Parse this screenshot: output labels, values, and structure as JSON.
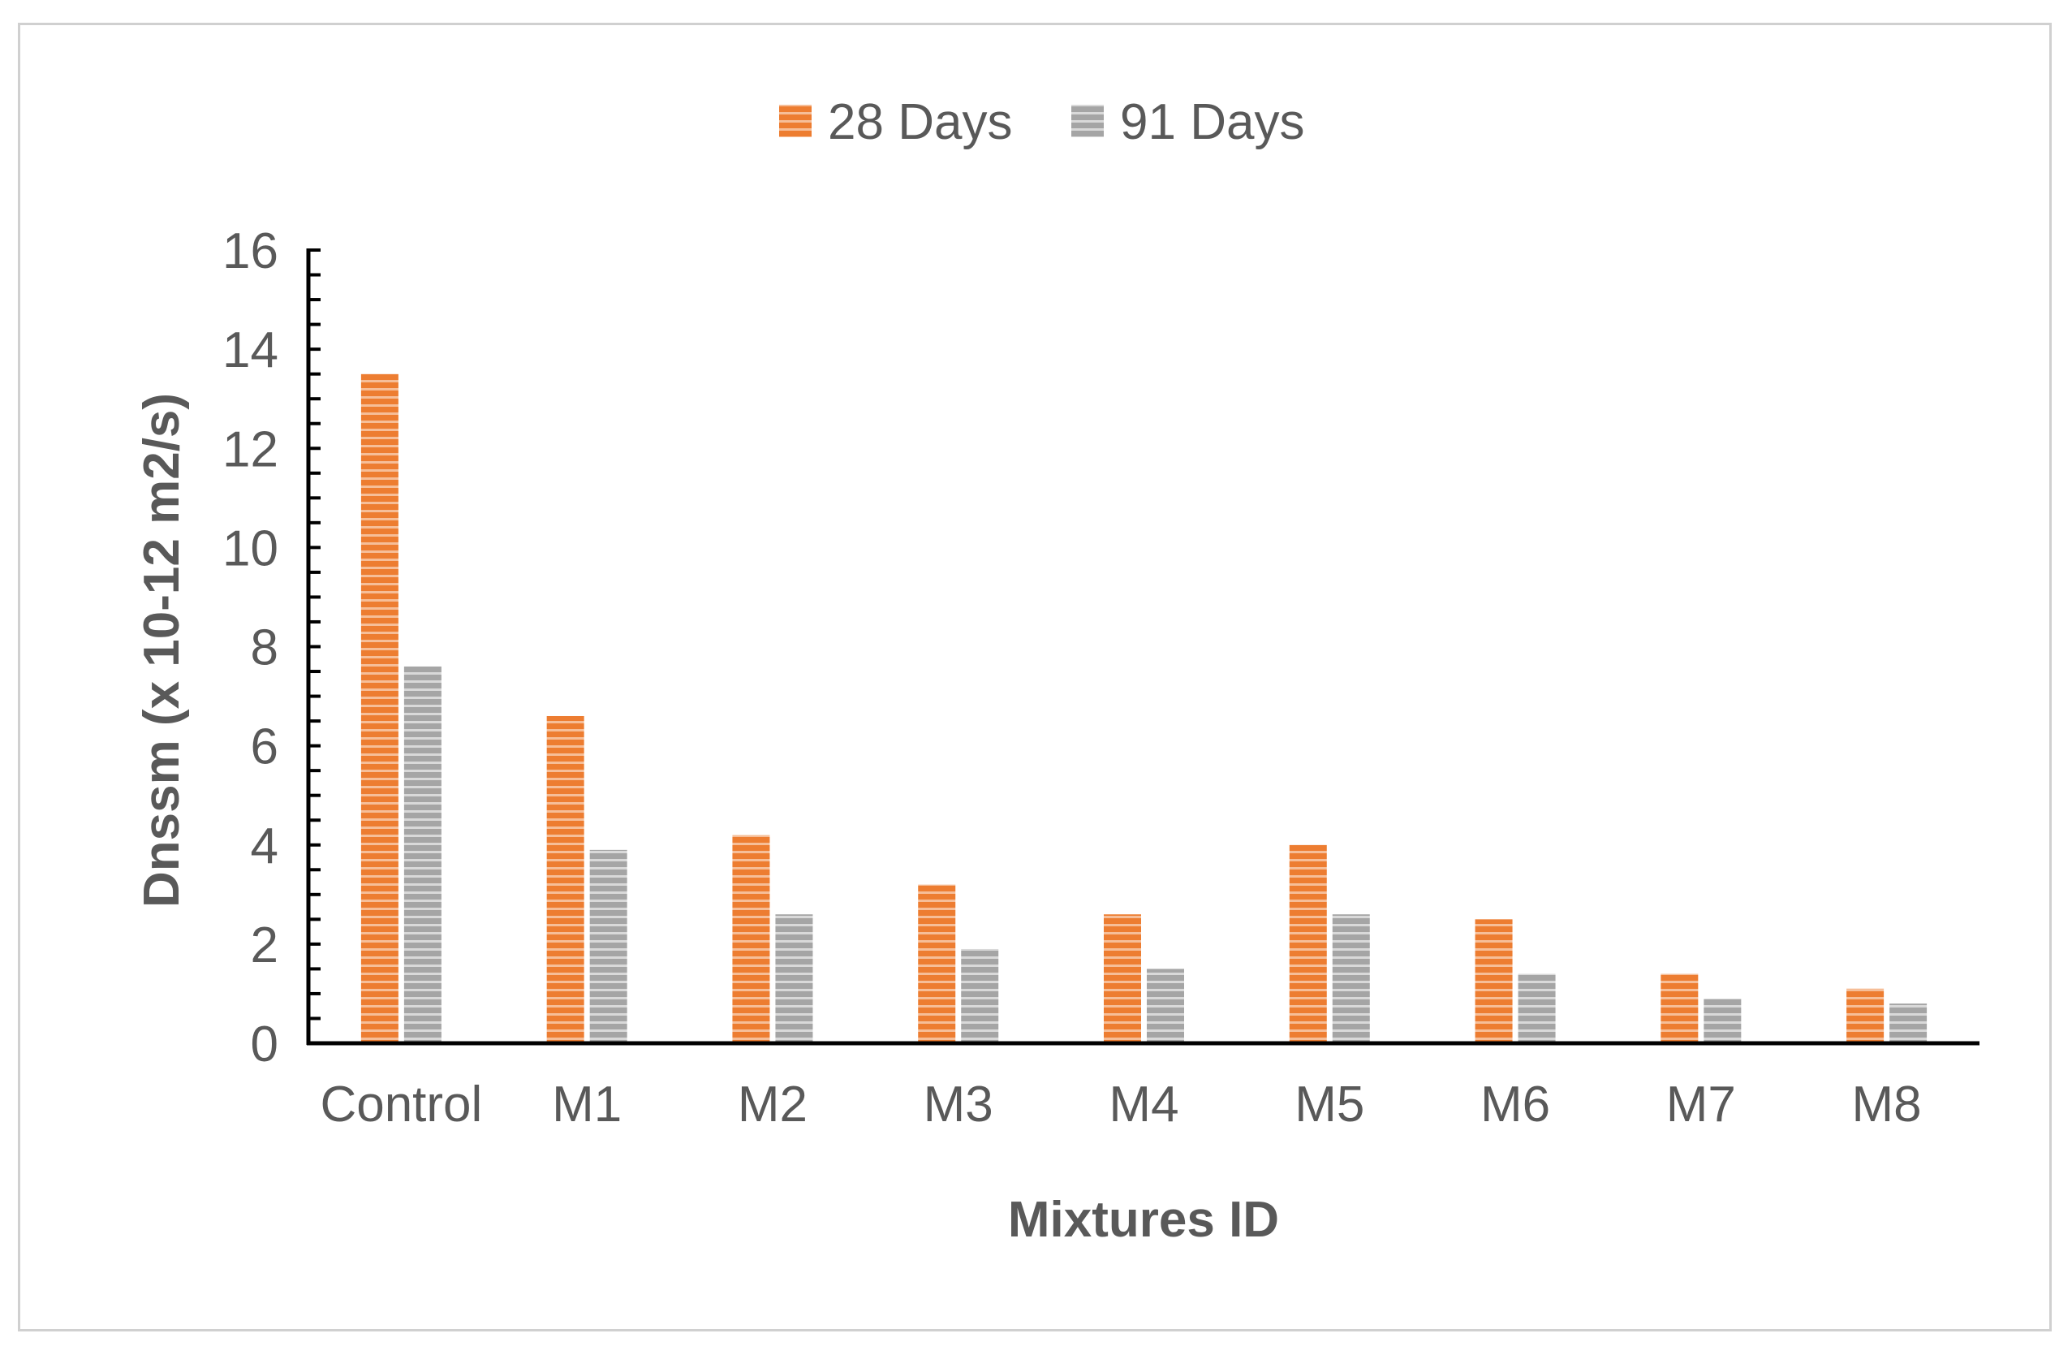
{
  "chart_data": {
    "type": "bar",
    "categories": [
      "Control",
      "M1",
      "M2",
      "M3",
      "M4",
      "M5",
      "M6",
      "M7",
      "M8"
    ],
    "series": [
      {
        "name": "28 Days",
        "color": "#ed7d31",
        "values": [
          13.5,
          6.6,
          4.2,
          3.2,
          2.6,
          4.0,
          2.5,
          1.4,
          1.1
        ]
      },
      {
        "name": "91 Days",
        "color": "#a5a5a5",
        "values": [
          7.6,
          3.9,
          2.6,
          1.9,
          1.5,
          2.6,
          1.4,
          0.9,
          0.8
        ]
      }
    ],
    "xlabel": "Mixtures ID",
    "ylabel": "Dnssm (x 10-12 m2/s)",
    "ylim": [
      0,
      16
    ],
    "yticks": [
      0,
      2,
      4,
      6,
      8,
      10,
      12,
      14,
      16
    ],
    "legend_position": "top-center",
    "grid": false
  }
}
